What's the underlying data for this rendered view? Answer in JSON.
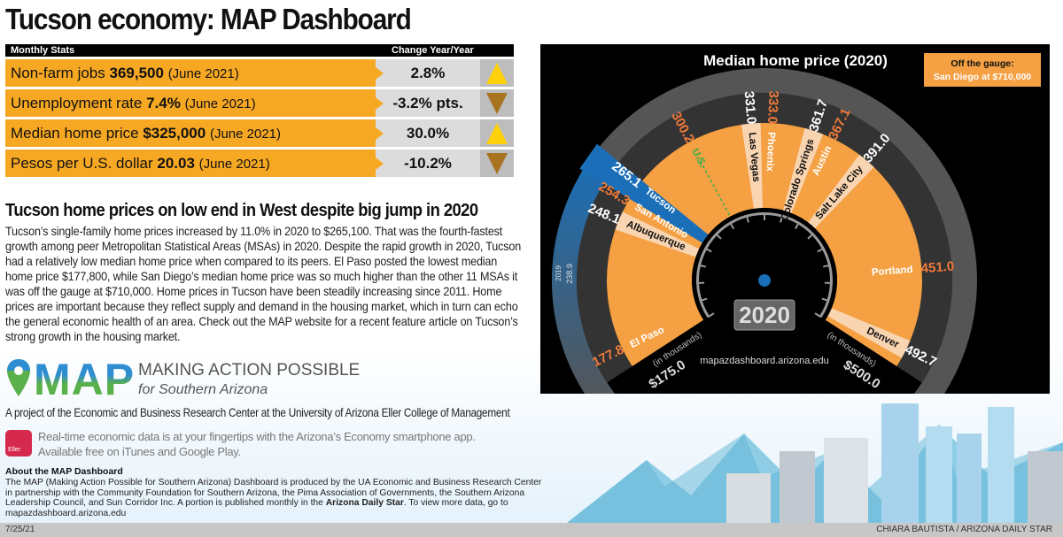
{
  "title": "Tucson economy: MAP Dashboard",
  "stats": {
    "header_left": "Monthly Stats",
    "header_right": "Change Year/Year",
    "rows": [
      {
        "label": "Non-farm jobs",
        "value": "369,500",
        "period": "(June 2021)",
        "change": "2.8%",
        "direction": "up"
      },
      {
        "label": "Unemployment rate",
        "value": "7.4%",
        "period": "(June 2021)",
        "change": "-3.2% pts.",
        "direction": "down"
      },
      {
        "label": "Median home price",
        "value": "$325,000",
        "period": "(June 2021)",
        "change": "30.0%",
        "direction": "up"
      },
      {
        "label": "Pesos per U.S. dollar",
        "value": "20.03",
        "period": "(June 2021)",
        "change": "-10.2%",
        "direction": "down"
      }
    ],
    "colors": {
      "label_bg": "#f7a823",
      "up": "#ffd10a",
      "down": "#a8731f"
    }
  },
  "article": {
    "heading": "Tucson home prices on low end in West despite big jump in 2020",
    "body": "Tucson’s single-family home prices increased by 11.0% in 2020 to $265,100. That was the fourth-fastest growth among peer Metropolitan Statistical Areas (MSAs) in 2020. Despite the rapid growth in 2020, Tucson had a relatively low median home price when compared to its peers. El Paso posted the lowest median home price $177,800, while San Diego’s median home price was so much higher than the other 11 MSAs it was off the gauge at $710,000. Home prices in Tucson have been steadily increasing since 2011. Home prices are important because they reflect supply and demand in the housing market, which in turn can echo the general economic health of an area. Check out the MAP website for a recent feature article on Tucson’s strong growth in the housing market."
  },
  "chart_data": {
    "type": "gauge",
    "title": "Median home price (2020)",
    "unit": "(in thousands)",
    "min_label": "$175.0",
    "max_label": "$500.0",
    "range": [
      175,
      500
    ],
    "year_display": "2020",
    "url": "mapazdashboard.arizona.edu",
    "callout": {
      "line1": "Off the gauge:",
      "line2": "San Diego at $710,000"
    },
    "highlight": {
      "name": "Tucson",
      "value": 265.1,
      "prior_label": "2019",
      "prior_value": 238.9,
      "color": "#1a6fb8"
    },
    "reference": {
      "name": "U.S.",
      "value": 300.2,
      "color": "#2bb24c"
    },
    "categories": [
      "El Paso",
      "Albuquerque",
      "San Antonio",
      "Tucson",
      "U.S.",
      "Las Vegas",
      "Phoenix",
      "Colorado Springs",
      "Austin",
      "Salt Lake City",
      "Portland",
      "Denver"
    ],
    "values": [
      177.8,
      248.1,
      254.3,
      265.1,
      300.2,
      331.0,
      333.0,
      361.7,
      367.1,
      391.0,
      451.0,
      492.7
    ],
    "value_labels": [
      "177.8",
      "248.1",
      "254.3",
      "265.1",
      "300.2",
      "331.0",
      "333.0",
      "361.7",
      "367.1",
      "391.0",
      "451.0",
      "492.7"
    ],
    "colors": {
      "fill": "#f4a043",
      "divider": "#f9d4b0",
      "ring": "#333333",
      "outer": "#555555",
      "alt_value": "#f07b3a"
    }
  },
  "footer_block": {
    "logo_text": "MAP",
    "tagline1": "MAKING ACTION POSSIBLE",
    "tagline2": "for Southern Arizona",
    "project": "A project of the Economic and Business Research Center at the University of Arizona Eller College of Management",
    "app_icon_text": "Eller",
    "app1": "Real-time economic data is at your fingertips with the Arizona’s Economy smartphone app.",
    "app2": "Available free on iTunes and Google Play.",
    "about_title": "About the MAP Dashboard",
    "about_1": "The MAP (Making Action Possible for Southern Arizona) Dashboard is produced by the UA Economic and Business Research Center in partnership with the Community Foundation for Southern Arizona, the Pima Association of Governments, the Southern Arizona Leadership Council, and Sun Corridor Inc. A portion is published monthly in the ",
    "about_bold": "Arizona Daily Star",
    "about_2": ". To view more data, go to mapazdashboard.arizona.edu",
    "date": "7/25/21",
    "credit": "CHIARA BAUTISTA / ARIZONA DAILY STAR"
  }
}
